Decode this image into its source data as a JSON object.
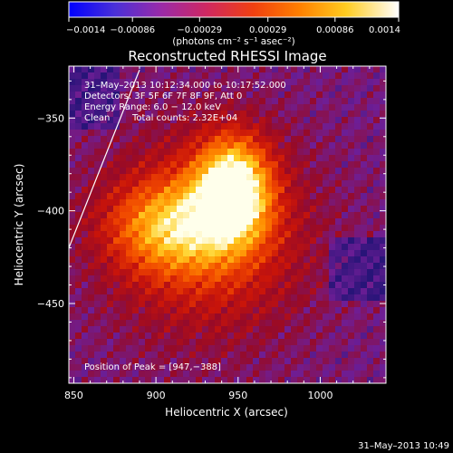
{
  "colorbar": {
    "min": -0.0014,
    "max": 0.0014,
    "tick_labels": [
      "−0.0014",
      "−0.00086",
      "−0.00029",
      "0.00029",
      "0.00086",
      "0.0014"
    ],
    "tick_values": [
      -0.0014,
      -0.00086,
      -0.00029,
      0.00029,
      0.00086,
      0.0014
    ],
    "unit_label": "(photons cm⁻² s⁻¹ asec⁻²)",
    "colormap": "rainbow-to-hot"
  },
  "title": "Reconstructed RHESSI Image",
  "info": {
    "time": "31–May–2013 10:12:34.000 to 10:17:52.000",
    "detectors": "Detectors: 3F 5F 6F 7F 8F 9F, Att 0",
    "energy": "Energy Range: 6.0 − 12.0 keV",
    "method": "Clean",
    "counts": "Total counts: 2.32E+04"
  },
  "peak_text": "Position of Peak = [947,−388]",
  "axes": {
    "xlabel": "Heliocentric X (arcsec)",
    "ylabel": "Heliocentric Y (arcsec)",
    "x_range": [
      847,
      1040
    ],
    "y_range": [
      -493,
      -322
    ],
    "x_ticks": [
      850,
      900,
      950,
      1000
    ],
    "x_tick_labels": [
      "850",
      "900",
      "950",
      "1000"
    ],
    "y_ticks": [
      -350,
      -400,
      -450
    ],
    "y_tick_labels": [
      "−350",
      "−400",
      "−450"
    ]
  },
  "peak": {
    "x": 947,
    "y": -388
  },
  "limb_line": [
    [
      847,
      -420
    ],
    [
      890,
      -324
    ]
  ],
  "footer_timestamp": "31–May–2013 10:49",
  "colors": {
    "background": "#000000",
    "foreground": "#ffffff",
    "limb": "#ffffff"
  }
}
